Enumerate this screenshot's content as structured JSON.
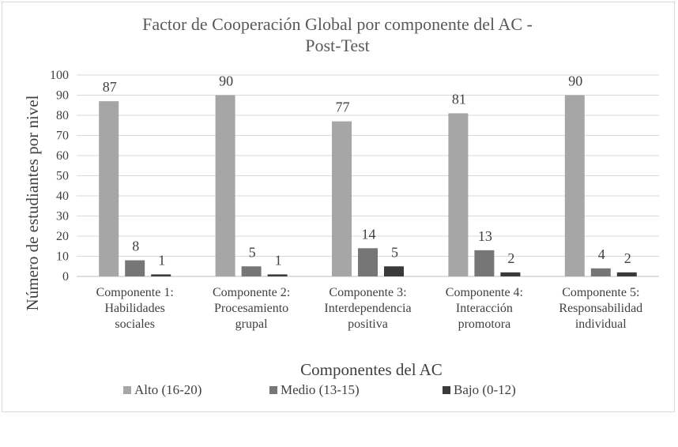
{
  "chart_data": {
    "type": "bar",
    "title_line1": "Factor de Cooperación Global por componente del AC -",
    "title_line2": "Post-Test",
    "xlabel": "Componentes del AC",
    "ylabel": "Número de estudiantes por nivel",
    "ylim": [
      0,
      100
    ],
    "yticks": [
      "0",
      "10",
      "20",
      "30",
      "40",
      "50",
      "60",
      "70",
      "80",
      "90",
      "100"
    ],
    "grid": true,
    "legend_position": "bottom",
    "categories": [
      [
        "Componente 1:",
        "Habilidades",
        "sociales"
      ],
      [
        "Componente 2:",
        "Procesamiento",
        "grupal"
      ],
      [
        "Componente 3:",
        "Interdependencia",
        "positiva"
      ],
      [
        "Componente 4:",
        "Interacción",
        "promotora"
      ],
      [
        "Componente 5:",
        "Responsabilidad",
        "individual"
      ]
    ],
    "series": [
      {
        "name": "Alto (16-20)",
        "color": "#a6a6a6",
        "values": [
          87,
          90,
          77,
          81,
          90
        ]
      },
      {
        "name": "Medio (13-15)",
        "color": "#767676",
        "values": [
          8,
          5,
          14,
          13,
          4
        ]
      },
      {
        "name": "Bajo (0-12)",
        "color": "#3a3a3a",
        "values": [
          1,
          1,
          5,
          2,
          2
        ]
      }
    ]
  }
}
